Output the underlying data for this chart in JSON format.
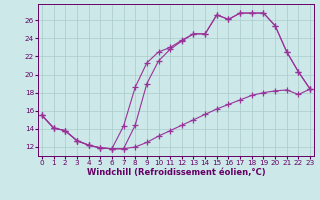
{
  "bg_color": "#cce8e8",
  "grid_color": "#aacccc",
  "line_color": "#993399",
  "text_color": "#660066",
  "xlabel": "Windchill (Refroidissement éolien,°C)",
  "xlim": [
    -0.3,
    23.3
  ],
  "ylim": [
    11.0,
    27.8
  ],
  "xticks": [
    0,
    1,
    2,
    3,
    4,
    5,
    6,
    7,
    8,
    9,
    10,
    11,
    12,
    13,
    14,
    15,
    16,
    17,
    18,
    19,
    20,
    21,
    22,
    23
  ],
  "yticks": [
    12,
    14,
    16,
    18,
    20,
    22,
    24,
    26
  ],
  "lines": [
    {
      "x": [
        0,
        1,
        2,
        3,
        4,
        5,
        6,
        7,
        8,
        9,
        10,
        11,
        12,
        13,
        14,
        15,
        16,
        17,
        18,
        19,
        20,
        21,
        22,
        23
      ],
      "y": [
        15.5,
        14.1,
        13.8,
        12.7,
        12.2,
        11.9,
        11.8,
        14.3,
        18.6,
        21.3,
        22.5,
        23.0,
        23.8,
        24.5,
        24.5,
        26.6,
        26.1,
        26.8,
        26.8,
        26.8,
        25.4,
        22.5,
        20.3,
        18.4
      ]
    },
    {
      "x": [
        0,
        1,
        2,
        3,
        4,
        5,
        6,
        7,
        8,
        9,
        10,
        11,
        12,
        13,
        14,
        15,
        16,
        17,
        18,
        19,
        20,
        21,
        22,
        23
      ],
      "y": [
        15.5,
        14.1,
        13.8,
        12.7,
        12.2,
        11.9,
        11.8,
        11.8,
        14.4,
        19.0,
        21.5,
        22.8,
        23.7,
        24.5,
        24.5,
        26.6,
        26.1,
        26.8,
        26.8,
        26.8,
        25.4,
        22.5,
        20.3,
        18.4
      ]
    },
    {
      "x": [
        0,
        1,
        2,
        3,
        4,
        5,
        6,
        7,
        8,
        9,
        10,
        11,
        12,
        13,
        14,
        15,
        16,
        17,
        18,
        19,
        20,
        21,
        22,
        23
      ],
      "y": [
        15.5,
        14.1,
        13.8,
        12.7,
        12.2,
        11.9,
        11.8,
        11.8,
        12.0,
        12.5,
        13.2,
        13.8,
        14.4,
        15.0,
        15.6,
        16.2,
        16.7,
        17.2,
        17.7,
        18.0,
        18.2,
        18.3,
        17.8,
        18.4
      ]
    }
  ]
}
